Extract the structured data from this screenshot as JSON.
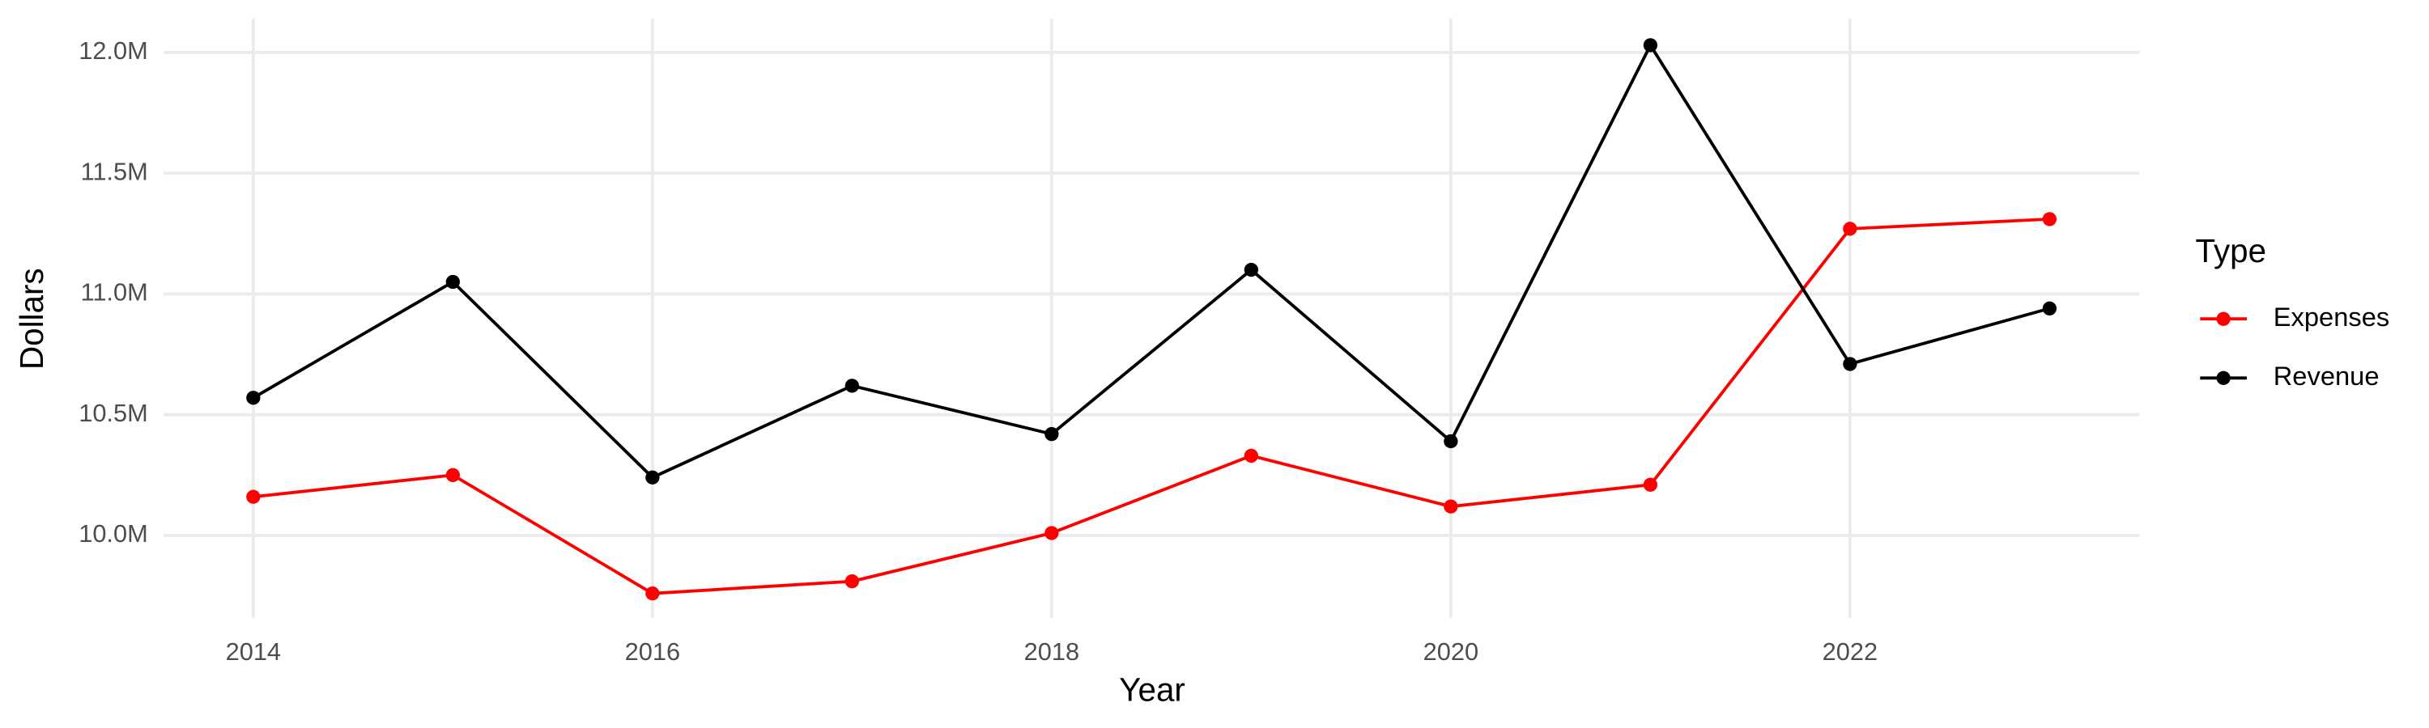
{
  "chart_data": {
    "type": "line",
    "x_label": "Year",
    "y_label": "Dollars",
    "legend_title": "Type",
    "legend_position": "right",
    "grid": true,
    "x": [
      2014,
      2015,
      2016,
      2017,
      2018,
      2019,
      2020,
      2021,
      2022,
      2023
    ],
    "series": [
      {
        "name": "Expenses",
        "color": "#ff0000",
        "values": [
          10160000,
          10250000,
          9760000,
          9810000,
          10010000,
          10330000,
          10120000,
          10210000,
          11270000,
          11310000
        ]
      },
      {
        "name": "Revenue",
        "color": "#000000",
        "values": [
          10570000,
          11050000,
          10240000,
          10620000,
          10420000,
          11100000,
          10390000,
          12030000,
          10710000,
          10940000
        ]
      }
    ],
    "xlim": [
      2013.55,
      2023.45
    ],
    "xticks": [
      2014,
      2016,
      2018,
      2020,
      2022
    ],
    "ylim": [
      9660000,
      12140000
    ],
    "yticks": [
      {
        "value": 10000000,
        "label": "10.0M"
      },
      {
        "value": 10500000,
        "label": "10.5M"
      },
      {
        "value": 11000000,
        "label": "11.0M"
      },
      {
        "value": 11500000,
        "label": "11.5M"
      },
      {
        "value": 12000000,
        "label": "12.0M"
      }
    ]
  }
}
